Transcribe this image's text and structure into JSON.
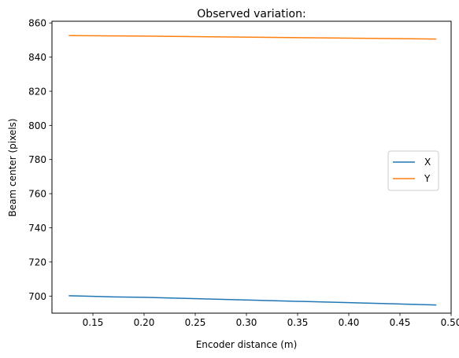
{
  "chart_data": {
    "type": "line",
    "title": "Observed variation:",
    "xlabel": "Encoder distance (m)",
    "ylabel": "Beam center (pixels)",
    "xlim": [
      0.11,
      0.5
    ],
    "ylim": [
      690,
      861
    ],
    "xticks": [
      0.15,
      0.2,
      0.25,
      0.3,
      0.35,
      0.4,
      0.45,
      0.5
    ],
    "xtick_labels": [
      "0.15",
      "0.20",
      "0.25",
      "0.30",
      "0.35",
      "0.40",
      "0.45",
      "0.50"
    ],
    "yticks": [
      700,
      720,
      740,
      760,
      780,
      800,
      820,
      840,
      860
    ],
    "ytick_labels": [
      "700",
      "720",
      "740",
      "760",
      "780",
      "800",
      "820",
      "840",
      "860"
    ],
    "grid": false,
    "legend_position": "center-right",
    "series": [
      {
        "name": "X",
        "color": "#1f77b4",
        "x": [
          0.127,
          0.171,
          0.2,
          0.171,
          0.2,
          0.485
        ],
        "y": [
          700.2,
          699.5,
          699.3,
          699.5,
          699.3,
          694.8
        ]
      },
      {
        "name": "Y",
        "color": "#ff7f0e",
        "x": [
          0.127,
          0.171,
          0.2,
          0.171,
          0.2,
          0.485
        ],
        "y": [
          852.6,
          852.4,
          852.3,
          852.4,
          852.3,
          850.6
        ]
      }
    ]
  }
}
